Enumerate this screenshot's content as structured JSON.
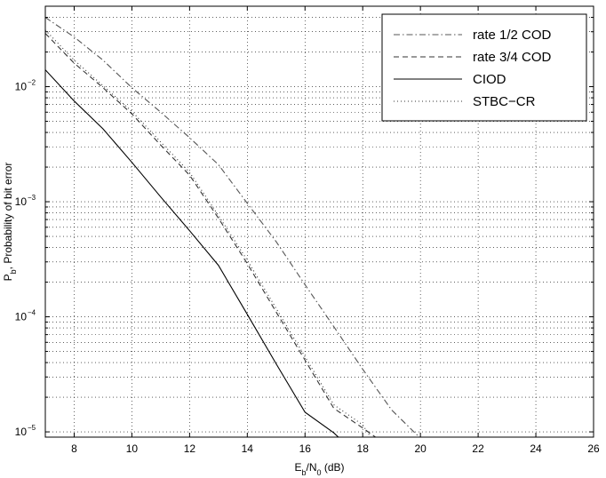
{
  "chart_data": {
    "type": "line",
    "xlabel": {
      "base": "E",
      "sub1": "b",
      "mid": "/N",
      "sub2": "0",
      "tail": " (dB)"
    },
    "ylabel": {
      "base": "P",
      "sub": "b",
      "tail": ", Probability of bit error"
    },
    "xlim": [
      7,
      26
    ],
    "ylim": [
      9e-06,
      0.05
    ],
    "yscale": "log",
    "grid": true,
    "legend_position": "top-right",
    "x_ticks": [
      "8",
      "10",
      "12",
      "14",
      "16",
      "18",
      "20",
      "22",
      "24",
      "26"
    ],
    "y_ticks": [
      {
        "base": "10",
        "exp": "−5",
        "value": 1e-05
      },
      {
        "base": "10",
        "exp": "−4",
        "value": 0.0001
      },
      {
        "base": "10",
        "exp": "−3",
        "value": 0.001
      },
      {
        "base": "10",
        "exp": "−2",
        "value": 0.01
      }
    ],
    "series": [
      {
        "name": "rate 1/2 COD",
        "style": "dashdot",
        "color": "#555555",
        "x": [
          7,
          8,
          9,
          10,
          11,
          12,
          13,
          14,
          15,
          16,
          17,
          18,
          19,
          20
        ],
        "y": [
          0.04,
          0.027,
          0.017,
          0.0098,
          0.006,
          0.0036,
          0.0021,
          0.00097,
          0.00045,
          0.00019,
          8.2e-05,
          3.5e-05,
          1.55e-05,
          8.8e-06
        ]
      },
      {
        "name": "rate 3/4 COD",
        "style": "dashed",
        "color": "#333333",
        "x": [
          7,
          8,
          9,
          10,
          11,
          12,
          13,
          14,
          15,
          16,
          17,
          18,
          18.5
        ],
        "y": [
          0.029,
          0.016,
          0.0098,
          0.0058,
          0.0031,
          0.0017,
          0.00072,
          0.00029,
          0.00011,
          4.2e-05,
          1.6e-05,
          1.08e-05,
          8.8e-06
        ]
      },
      {
        "name": "CIOD",
        "style": "solid",
        "color": "#000000",
        "x": [
          7,
          8,
          9,
          10,
          11,
          12,
          13,
          14,
          15,
          16,
          17,
          17.2
        ],
        "y": [
          0.014,
          0.0075,
          0.0043,
          0.0022,
          0.0011,
          0.00056,
          0.00028,
          0.000105,
          3.9e-05,
          1.48e-05,
          9.8e-06,
          8.8e-06
        ]
      },
      {
        "name": "STBC−CR",
        "style": "dotted",
        "color": "#333333",
        "x": [
          7,
          8,
          9,
          10,
          11,
          12,
          13,
          14,
          15,
          16,
          17,
          18,
          18.3
        ],
        "y": [
          0.031,
          0.017,
          0.0102,
          0.0061,
          0.0033,
          0.0018,
          0.00076,
          0.00031,
          0.000118,
          4.5e-05,
          1.72e-05,
          1.15e-05,
          8.8e-06
        ]
      }
    ]
  }
}
